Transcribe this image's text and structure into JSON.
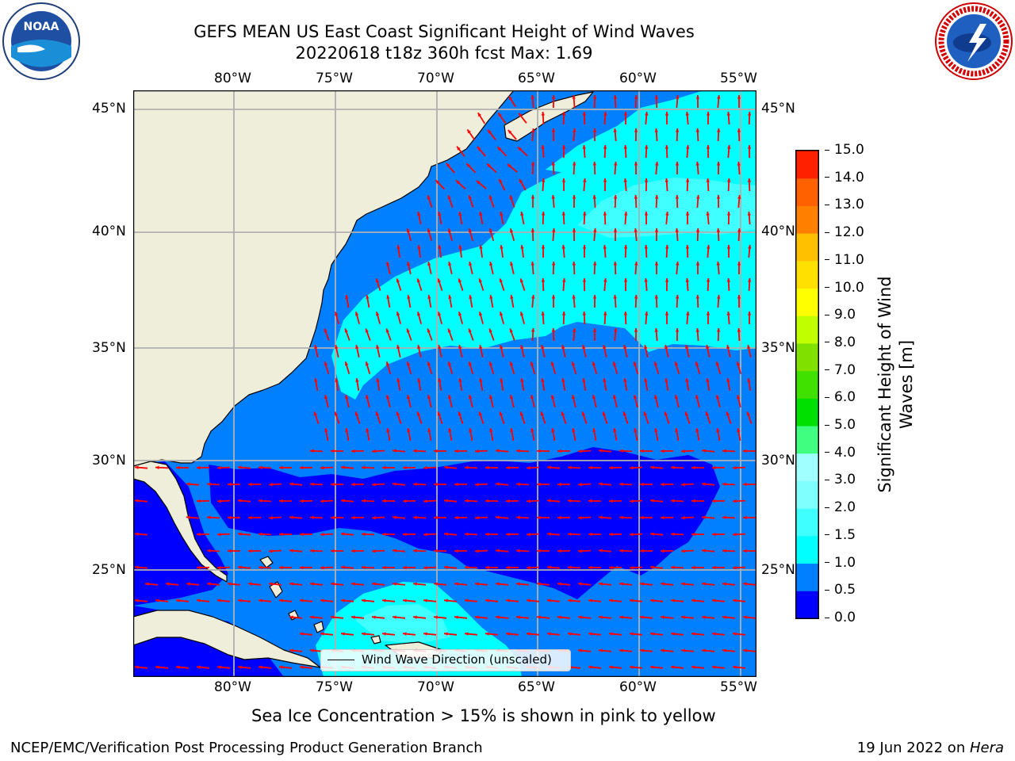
{
  "title": {
    "line1": "GEFS MEAN US East Coast Significant Height of Wind Waves",
    "line2": "20220618 t18z 360h fcst    Max: 1.69"
  },
  "logos": {
    "left": {
      "name": "noaa-logo",
      "text": "NOAA"
    },
    "right": {
      "name": "nws-logo",
      "text": "NATIONAL WEATHER SERVICE"
    }
  },
  "map": {
    "lon_ticks": [
      "80°W",
      "75°W",
      "70°W",
      "65°W",
      "60°W",
      "55°W"
    ],
    "lat_ticks": [
      "45°N",
      "40°N",
      "35°N",
      "30°N",
      "25°N"
    ],
    "legend_label": "Wind Wave Direction (unscaled)",
    "colors": {
      "land": "#efeedb",
      "sea_00": "#0000ff",
      "sea_05": "#0080ff",
      "sea_10": "#00ffff",
      "sea_15": "#40ffff",
      "arrow": "#ff0000",
      "grid": "#b0b0b0"
    }
  },
  "colorbar": {
    "label": "Significant Height of Wind Waves [m]",
    "ticks": [
      "0.0",
      "0.5",
      "1.0",
      "1.5",
      "2.0",
      "3.0",
      "4.0",
      "5.0",
      "6.0",
      "7.0",
      "8.0",
      "9.0",
      "10.0",
      "11.0",
      "12.0",
      "13.0",
      "14.0",
      "15.0"
    ],
    "colors": [
      "#0000ff",
      "#0080ff",
      "#00ffff",
      "#40ffff",
      "#80ffff",
      "#a0ffff",
      "#40ff80",
      "#00e000",
      "#40e000",
      "#80e000",
      "#c0ff00",
      "#ffff00",
      "#ffe000",
      "#ffc000",
      "#ff8000",
      "#ff6000",
      "#ff2000",
      "#ff0000"
    ]
  },
  "note": "Sea Ice Concentration > 15% is shown in pink to yellow",
  "footer": {
    "left": "NCEP/EMC/Verification Post Processing Product Generation Branch",
    "right_date": "19 Jun 2022 on ",
    "right_host": "Hera"
  }
}
